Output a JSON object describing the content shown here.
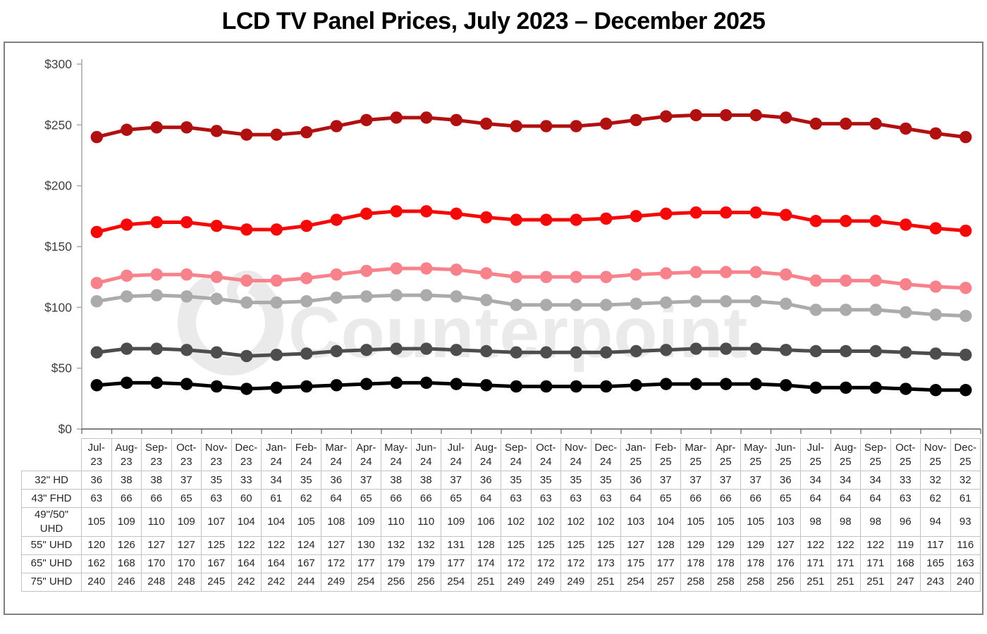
{
  "title": "LCD TV Panel Prices, July 2023 – December 2025",
  "watermark": {
    "symbol": "counterpoint-circle-logo",
    "text": "Counterpoint",
    "color": "#EAEAEA"
  },
  "axes": {
    "y_axis_color": "#ABABAB",
    "x_axis_color": "#595959",
    "tick_label_color": "#404040"
  },
  "chart_data": {
    "type": "line",
    "title": "LCD TV Panel Prices, July 2023 – December 2025",
    "xlabel": "",
    "ylabel": "",
    "ylim": [
      0,
      300
    ],
    "y_tick_values": [
      0,
      50,
      100,
      150,
      200,
      250,
      300
    ],
    "y_tick_labels": [
      "$0",
      "$50",
      "$100",
      "$150",
      "$200",
      "$250",
      "$300"
    ],
    "grid": false,
    "legend_position": "table-below",
    "x": [
      "Jul-23",
      "Aug-23",
      "Sep-23",
      "Oct-23",
      "Nov-23",
      "Dec-23",
      "Jan-24",
      "Feb-24",
      "Mar-24",
      "Apr-24",
      "May-24",
      "Jun-24",
      "Jul-24",
      "Aug-24",
      "Sep-24",
      "Oct-24",
      "Nov-24",
      "Dec-24",
      "Jan-25",
      "Feb-25",
      "Mar-25",
      "Apr-25",
      "May-25",
      "Jun-25",
      "Jul-25",
      "Aug-25",
      "Sep-25",
      "Oct-25",
      "Nov-25",
      "Dec-25"
    ],
    "series": [
      {
        "name": "32\" HD",
        "color": "#000000",
        "values": [
          36,
          38,
          38,
          37,
          35,
          33,
          34,
          35,
          36,
          37,
          38,
          38,
          37,
          36,
          35,
          35,
          35,
          35,
          36,
          37,
          37,
          37,
          37,
          36,
          34,
          34,
          34,
          33,
          32,
          32
        ]
      },
      {
        "name": "43\" FHD",
        "color": "#4D4D4D",
        "values": [
          63,
          66,
          66,
          65,
          63,
          60,
          61,
          62,
          64,
          65,
          66,
          66,
          65,
          64,
          63,
          63,
          63,
          63,
          64,
          65,
          66,
          66,
          66,
          65,
          64,
          64,
          64,
          63,
          62,
          61
        ]
      },
      {
        "name": "49\"/50\" UHD",
        "color": "#ABABAB",
        "values": [
          105,
          109,
          110,
          109,
          107,
          104,
          104,
          105,
          108,
          109,
          110,
          110,
          109,
          106,
          102,
          102,
          102,
          102,
          103,
          104,
          105,
          105,
          105,
          103,
          98,
          98,
          98,
          96,
          94,
          93
        ]
      },
      {
        "name": "55\" UHD",
        "color": "#F8828B",
        "values": [
          120,
          126,
          127,
          127,
          125,
          122,
          122,
          124,
          127,
          130,
          132,
          132,
          131,
          128,
          125,
          125,
          125,
          125,
          127,
          128,
          129,
          129,
          129,
          127,
          122,
          122,
          122,
          119,
          117,
          116
        ]
      },
      {
        "name": "65\" UHD",
        "color": "#F50808",
        "values": [
          162,
          168,
          170,
          170,
          167,
          164,
          164,
          167,
          172,
          177,
          179,
          179,
          177,
          174,
          172,
          172,
          172,
          173,
          175,
          177,
          178,
          178,
          178,
          176,
          171,
          171,
          171,
          168,
          165,
          163
        ]
      },
      {
        "name": "75\" UHD",
        "color": "#B01010",
        "values": [
          240,
          246,
          248,
          248,
          245,
          242,
          242,
          244,
          249,
          254,
          256,
          256,
          254,
          251,
          249,
          249,
          249,
          251,
          254,
          257,
          258,
          258,
          258,
          256,
          251,
          251,
          251,
          247,
          243,
          240
        ]
      }
    ]
  }
}
